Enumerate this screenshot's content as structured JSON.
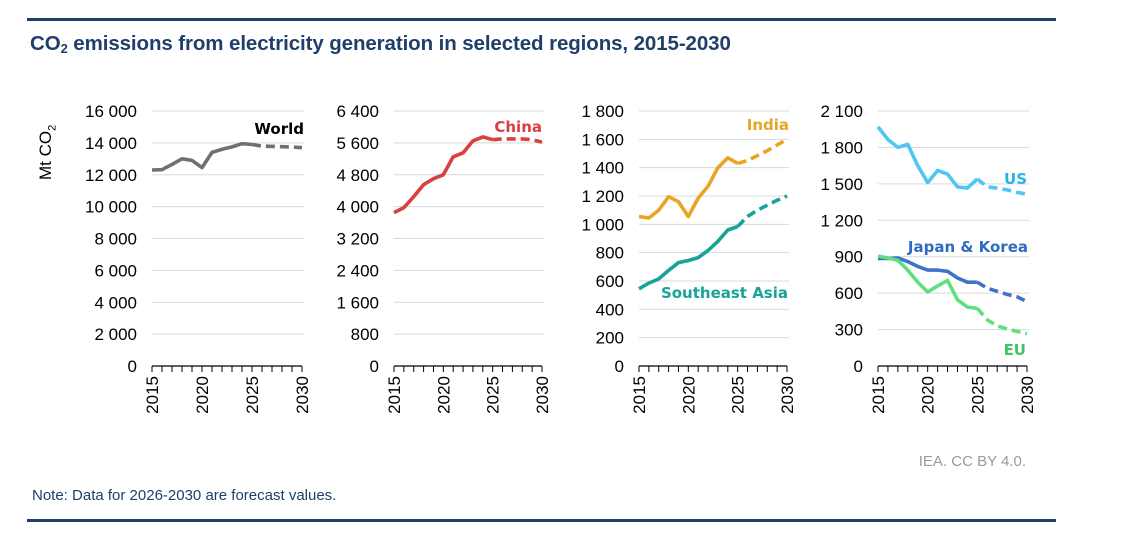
{
  "page": {
    "title_prefix": "CO",
    "title_sub": "2",
    "title_rest": " emissions from electricity generation in selected regions, 2015-2030",
    "y_axis_label_prefix": "Mt CO",
    "y_axis_label_sub": "2",
    "source": "IEA. CC BY 4.0.",
    "note": "Note: Data for 2026-2030 are forecast values."
  },
  "chart_data": [
    {
      "type": "line",
      "panel": "World",
      "ylabel": "Mt CO2",
      "x": [
        2015,
        2016,
        2017,
        2018,
        2019,
        2020,
        2021,
        2022,
        2023,
        2024,
        2025,
        2026,
        2027,
        2028,
        2029,
        2030
      ],
      "x_tick_labels": [
        "2015",
        "2020",
        "2025",
        "2030"
      ],
      "ylim": [
        0,
        16000
      ],
      "y_ticks": [
        0,
        2000,
        4000,
        6000,
        8000,
        10000,
        12000,
        14000,
        16000
      ],
      "y_tick_labels": [
        "0",
        "2 000",
        "4 000",
        "6 000",
        "8 000",
        "10 000",
        "12 000",
        "14 000",
        "16 000"
      ],
      "grid": true,
      "forecast_from": 2025,
      "series": [
        {
          "name": "World",
          "color": "#707070",
          "label_color": "#000000",
          "values": [
            12300,
            12320,
            12650,
            13000,
            12900,
            12450,
            13400,
            13600,
            13750,
            13950,
            13900,
            13800,
            13780,
            13760,
            13740,
            13700
          ]
        }
      ]
    },
    {
      "type": "line",
      "panel": "China",
      "x": [
        2015,
        2016,
        2017,
        2018,
        2019,
        2020,
        2021,
        2022,
        2023,
        2024,
        2025,
        2026,
        2027,
        2028,
        2029,
        2030
      ],
      "x_tick_labels": [
        "2015",
        "2020",
        "2025",
        "2030"
      ],
      "ylim": [
        0,
        6400
      ],
      "y_ticks": [
        0,
        800,
        1600,
        2400,
        3200,
        4000,
        4800,
        5600,
        6400
      ],
      "y_tick_labels": [
        "0",
        "800",
        "1 600",
        "2 400",
        "3 200",
        "4 000",
        "4 800",
        "5 600",
        "6 400"
      ],
      "grid": true,
      "forecast_from": 2025,
      "series": [
        {
          "name": "China",
          "color": "#d9403f",
          "label_color": "#d9403f",
          "values": [
            3850,
            3975,
            4250,
            4550,
            4700,
            4800,
            5250,
            5350,
            5650,
            5750,
            5680,
            5700,
            5700,
            5700,
            5680,
            5620
          ]
        }
      ]
    },
    {
      "type": "line",
      "panel": "India & Southeast Asia",
      "x": [
        2015,
        2016,
        2017,
        2018,
        2019,
        2020,
        2021,
        2022,
        2023,
        2024,
        2025,
        2026,
        2027,
        2028,
        2029,
        2030
      ],
      "x_tick_labels": [
        "2015",
        "2020",
        "2025",
        "2030"
      ],
      "ylim": [
        0,
        1800
      ],
      "y_ticks": [
        0,
        200,
        400,
        600,
        800,
        1000,
        1200,
        1400,
        1600,
        1800
      ],
      "y_tick_labels": [
        "0",
        "200",
        "400",
        "600",
        "800",
        "1 000",
        "1 200",
        "1 400",
        "1 600",
        "1 800"
      ],
      "grid": true,
      "forecast_from": 2025,
      "series": [
        {
          "name": "India",
          "color": "#e8a524",
          "label_color": "#e8a524",
          "values": [
            1055,
            1045,
            1100,
            1195,
            1160,
            1055,
            1185,
            1270,
            1400,
            1470,
            1430,
            1450,
            1485,
            1520,
            1560,
            1600
          ]
        },
        {
          "name": "Southeast Asia",
          "color": "#17a398",
          "label_color": "#17a398",
          "values": [
            545,
            585,
            615,
            675,
            730,
            745,
            765,
            815,
            880,
            960,
            985,
            1055,
            1100,
            1135,
            1170,
            1200
          ]
        }
      ]
    },
    {
      "type": "line",
      "panel": "US, Japan & Korea, EU",
      "x": [
        2015,
        2016,
        2017,
        2018,
        2019,
        2020,
        2021,
        2022,
        2023,
        2024,
        2025,
        2026,
        2027,
        2028,
        2029,
        2030
      ],
      "x_tick_labels": [
        "2015",
        "2020",
        "2025",
        "2030"
      ],
      "ylim": [
        0,
        2100
      ],
      "y_ticks": [
        0,
        300,
        600,
        900,
        1200,
        1500,
        1800,
        2100
      ],
      "y_tick_labels": [
        "0",
        "300",
        "600",
        "900",
        "1 200",
        "1 500",
        "1 800",
        "2 100"
      ],
      "grid": true,
      "forecast_from": 2025,
      "series": [
        {
          "name": "US",
          "color": "#4fc7f2",
          "label_color": "#29b2e6",
          "values": [
            1970,
            1865,
            1800,
            1825,
            1650,
            1510,
            1610,
            1580,
            1475,
            1465,
            1540,
            1475,
            1465,
            1450,
            1430,
            1415
          ]
        },
        {
          "name": "Japan & Korea",
          "color": "#3f72c9",
          "label_color": "#2f6cc0",
          "values": [
            885,
            885,
            890,
            860,
            820,
            790,
            790,
            780,
            725,
            690,
            690,
            640,
            615,
            590,
            570,
            530
          ]
        },
        {
          "name": "EU",
          "color": "#5ee07f",
          "label_color": "#3cc764",
          "values": [
            905,
            890,
            870,
            790,
            690,
            610,
            660,
            705,
            545,
            485,
            475,
            380,
            330,
            305,
            285,
            265
          ]
        }
      ]
    }
  ]
}
